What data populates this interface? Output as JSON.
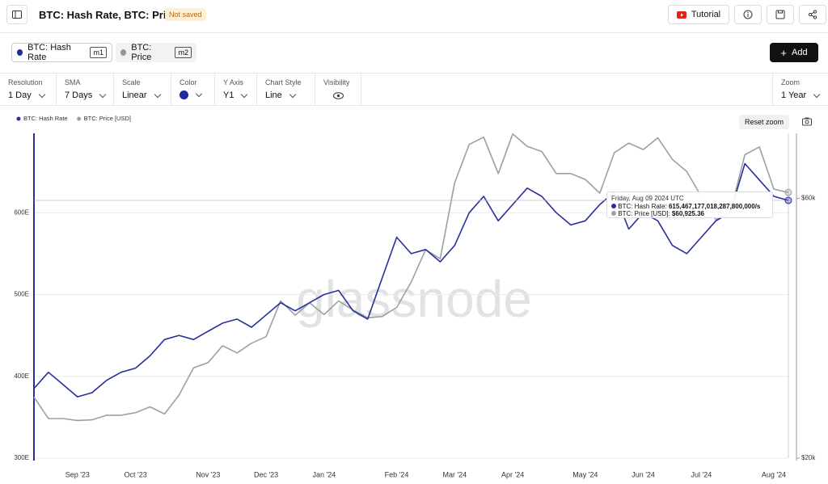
{
  "header": {
    "title": "BTC: Hash Rate, BTC: Price",
    "badge": "Not saved",
    "tutorial": "Tutorial"
  },
  "metrics": [
    {
      "name": "BTC: Hash Rate",
      "tag": "m1"
    },
    {
      "name": "BTC: Price",
      "tag": "m2"
    }
  ],
  "add": "Add",
  "controls": [
    {
      "label": "Resolution",
      "value": "1 Day"
    },
    {
      "label": "SMA",
      "value": "7 Days"
    },
    {
      "label": "Scale",
      "value": "Linear"
    },
    {
      "label": "Color"
    },
    {
      "label": "Y Axis",
      "value": "Y1"
    },
    {
      "label": "Chart Style",
      "value": "Line"
    },
    {
      "label": "Visibility"
    }
  ],
  "zoom": {
    "label": "Zoom",
    "value": "1 Year"
  },
  "reset_zoom": "Reset zoom",
  "watermark": "glassnode",
  "tooltip": {
    "date": "Friday, Aug 09 2024 UTC",
    "lines": [
      {
        "label": "BTC: Hash Rate:",
        "value": "615,467,177,018,287,800,000/s"
      },
      {
        "label": "BTC: Price [USD]:",
        "value": "$60,925.36"
      }
    ]
  },
  "chart_data": {
    "type": "line",
    "categories": [
      null,
      null,
      null,
      "Sep '23",
      null,
      null,
      null,
      "Oct '23",
      null,
      null,
      null,
      null,
      "Nov '23",
      null,
      null,
      null,
      "Dec '23",
      null,
      null,
      null,
      "Jan '24",
      null,
      null,
      null,
      null,
      "Feb '24",
      null,
      null,
      null,
      "Mar '24",
      null,
      null,
      null,
      "Apr '24",
      null,
      null,
      null,
      null,
      "May '24",
      null,
      null,
      null,
      "Jun '24",
      null,
      null,
      null,
      "Jul '24",
      null,
      null,
      null,
      null,
      "Aug '24",
      null
    ],
    "series": [
      {
        "name": "BTC: Hash Rate",
        "color": "#27309b",
        "values": [
          385,
          405,
          390,
          375,
          380,
          395,
          405,
          410,
          425,
          445,
          450,
          445,
          455,
          465,
          470,
          460,
          475,
          490,
          480,
          490,
          500,
          505,
          480,
          470,
          520,
          570,
          550,
          555,
          540,
          560,
          600,
          620,
          590,
          610,
          630,
          620,
          600,
          585,
          590,
          610,
          625,
          580,
          600,
          590,
          560,
          550,
          570,
          590,
          600,
          660,
          640,
          620,
          615
        ]
      },
      {
        "name": "BTC: Price [USD]",
        "color": "#9aa29f",
        "axis": "y2",
        "values": [
          29400,
          26100,
          26100,
          25800,
          25900,
          26600,
          26600,
          27000,
          27900,
          26800,
          29700,
          33900,
          34700,
          37300,
          36200,
          37700,
          38700,
          44200,
          42000,
          43900,
          42100,
          44200,
          42800,
          41600,
          41800,
          43200,
          47100,
          52100,
          50700,
          62400,
          68300,
          69400,
          63800,
          69900,
          68000,
          67200,
          63800,
          63800,
          62900,
          60800,
          67000,
          68500,
          67500,
          69300,
          66000,
          64100,
          60300,
          56700,
          57900,
          66700,
          67900,
          61400,
          60900
        ]
      }
    ],
    "ylim": [
      300,
      697
    ],
    "yticks": [
      {
        "value": 300,
        "label": "300E"
      },
      {
        "value": 400,
        "label": "400E"
      },
      {
        "value": 500,
        "label": "500E"
      },
      {
        "value": 600,
        "label": "600E"
      }
    ],
    "y2lim": [
      20000,
      70000
    ],
    "y2ticks": [
      {
        "value": 20000,
        "label": "$20k"
      },
      {
        "value": 60000,
        "label": "$60k"
      }
    ],
    "grid": true
  }
}
